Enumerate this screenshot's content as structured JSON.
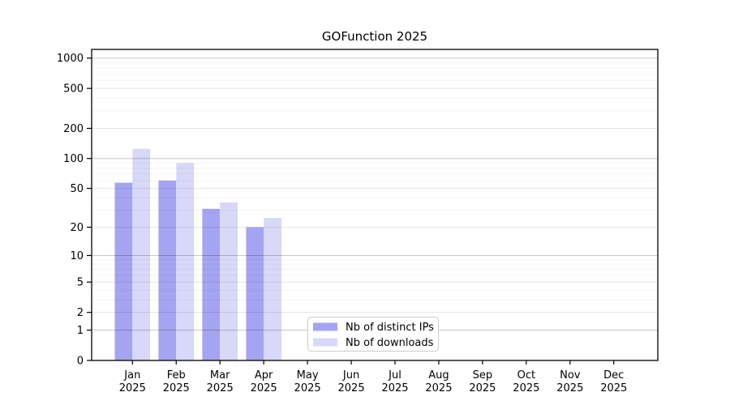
{
  "chart_data": {
    "type": "bar",
    "title": "GOFunction 2025",
    "categories": [
      "Jan 2025",
      "Feb 2025",
      "Mar 2025",
      "Apr 2025",
      "May 2025",
      "Jun 2025",
      "Jul 2025",
      "Aug 2025",
      "Sep 2025",
      "Oct 2025",
      "Nov 2025",
      "Dec 2025"
    ],
    "month_labels": [
      "Jan",
      "Feb",
      "Mar",
      "Apr",
      "May",
      "Jun",
      "Jul",
      "Aug",
      "Sep",
      "Oct",
      "Nov",
      "Dec"
    ],
    "year_label": "2025",
    "series": [
      {
        "name": "Nb of distinct IPs",
        "color": "#a4a4f2",
        "values": [
          57,
          60,
          31,
          20,
          0,
          0,
          0,
          0,
          0,
          0,
          0,
          0
        ]
      },
      {
        "name": "Nb of downloads",
        "color": "#d8d8f9",
        "values": [
          125,
          90,
          36,
          25,
          0,
          0,
          0,
          0,
          0,
          0,
          0,
          0
        ]
      }
    ],
    "y_ticks": [
      0,
      1,
      2,
      5,
      10,
      20,
      50,
      100,
      200,
      500,
      1000
    ],
    "y_scale": "log10(value+1)",
    "ylim": [
      0,
      1200
    ],
    "grid": true,
    "legend": {
      "position": "lower center",
      "entries": [
        "Nb of distinct IPs",
        "Nb of downloads"
      ]
    }
  }
}
